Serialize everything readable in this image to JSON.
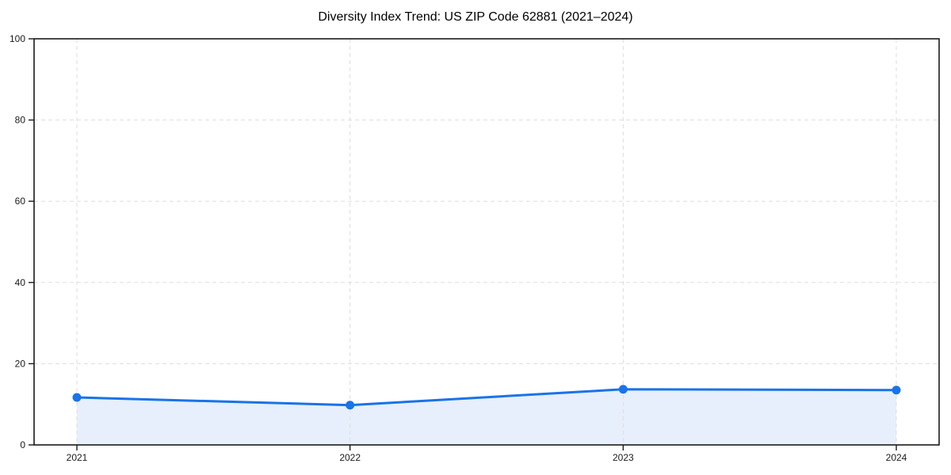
{
  "page": {
    "background": "#ffffff"
  },
  "chart_data": {
    "type": "line",
    "title": "Diversity Index Trend: US ZIP Code 62881 (2021–2024)",
    "categories": [
      "2021",
      "2022",
      "2023",
      "2024"
    ],
    "series": [
      {
        "name": "Diversity Index",
        "values": [
          11.7,
          9.8,
          13.7,
          13.5
        ]
      }
    ],
    "xlabel": "",
    "ylabel": "",
    "ylim": [
      0,
      100
    ],
    "yticks": [
      0,
      20,
      40,
      60,
      80,
      100
    ],
    "legend": "none",
    "grid": {
      "horizontal": true,
      "vertical": true,
      "style": "dashed",
      "color": "#dddddd"
    },
    "area_fill": true,
    "markers": true,
    "colors": {
      "line": "#1a73e8",
      "marker": "#1a73e8",
      "area": "#e7effd",
      "grid": "#dddddd",
      "axis": "#1a1a1a",
      "tick_text": "#1a1a1a",
      "title_text": "#000000",
      "background": "#ffffff"
    }
  }
}
